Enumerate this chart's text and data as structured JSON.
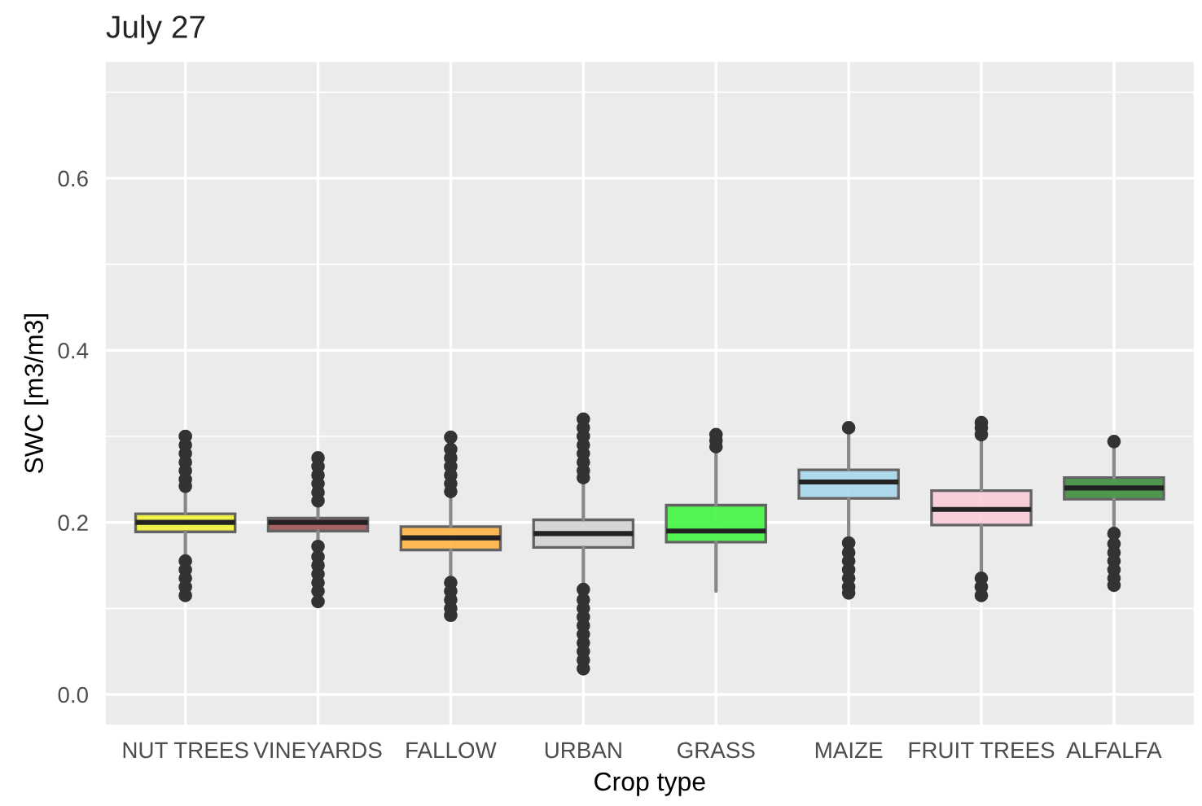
{
  "chart_data": {
    "type": "box",
    "title": "July 27",
    "xlabel": "Crop type",
    "ylabel": "SWC [m3/m3]",
    "categories": [
      "NUT TREES",
      "VINEYARDS",
      "FALLOW",
      "URBAN",
      "GRASS",
      "MAIZE",
      "FRUIT TREES",
      "ALFALFA"
    ],
    "colors": [
      "#f2f23a",
      "#a05454",
      "#ffb444",
      "#d3d3d3",
      "#44f444",
      "#a8d8ea",
      "#f8cdd6",
      "#3f8f3f"
    ],
    "boxes": [
      {
        "low": 0.161,
        "q1": 0.189,
        "median": 0.2,
        "q3": 0.21,
        "high": 0.237,
        "outliers": [
          0.242,
          0.25,
          0.26,
          0.27,
          0.28,
          0.29,
          0.3,
          0.155,
          0.145,
          0.135,
          0.125,
          0.115
        ]
      },
      {
        "low": 0.178,
        "q1": 0.19,
        "median": 0.2,
        "q3": 0.205,
        "high": 0.218,
        "outliers": [
          0.225,
          0.235,
          0.245,
          0.255,
          0.265,
          0.275,
          0.172,
          0.16,
          0.15,
          0.14,
          0.13,
          0.12,
          0.108
        ]
      },
      {
        "low": 0.136,
        "q1": 0.168,
        "median": 0.182,
        "q3": 0.195,
        "high": 0.231,
        "outliers": [
          0.236,
          0.245,
          0.255,
          0.265,
          0.275,
          0.285,
          0.299,
          0.13,
          0.12,
          0.11,
          0.1,
          0.092
        ]
      },
      {
        "low": 0.127,
        "q1": 0.171,
        "median": 0.187,
        "q3": 0.203,
        "high": 0.247,
        "outliers": [
          0.252,
          0.26,
          0.27,
          0.28,
          0.29,
          0.3,
          0.31,
          0.32,
          0.122,
          0.11,
          0.1,
          0.09,
          0.08,
          0.07,
          0.06,
          0.05,
          0.04,
          0.03
        ]
      },
      {
        "low": 0.12,
        "q1": 0.177,
        "median": 0.19,
        "q3": 0.22,
        "high": 0.282,
        "outliers": [
          0.288,
          0.295,
          0.302
        ]
      },
      {
        "low": 0.181,
        "q1": 0.228,
        "median": 0.247,
        "q3": 0.261,
        "high": 0.305,
        "outliers": [
          0.31,
          0.176,
          0.165,
          0.155,
          0.145,
          0.135,
          0.125,
          0.118
        ]
      },
      {
        "low": 0.141,
        "q1": 0.197,
        "median": 0.215,
        "q3": 0.237,
        "high": 0.297,
        "outliers": [
          0.302,
          0.31,
          0.316,
          0.135,
          0.125,
          0.115
        ]
      },
      {
        "low": 0.193,
        "q1": 0.227,
        "median": 0.24,
        "q3": 0.252,
        "high": 0.288,
        "outliers": [
          0.294,
          0.187,
          0.175,
          0.165,
          0.155,
          0.145,
          0.135,
          0.127
        ]
      }
    ],
    "ylim": [
      -0.035,
      0.735
    ],
    "yticks": [
      {
        "value": 0,
        "label": "0.0"
      },
      0.2,
      0.4,
      0.6
    ],
    "grid": true
  }
}
